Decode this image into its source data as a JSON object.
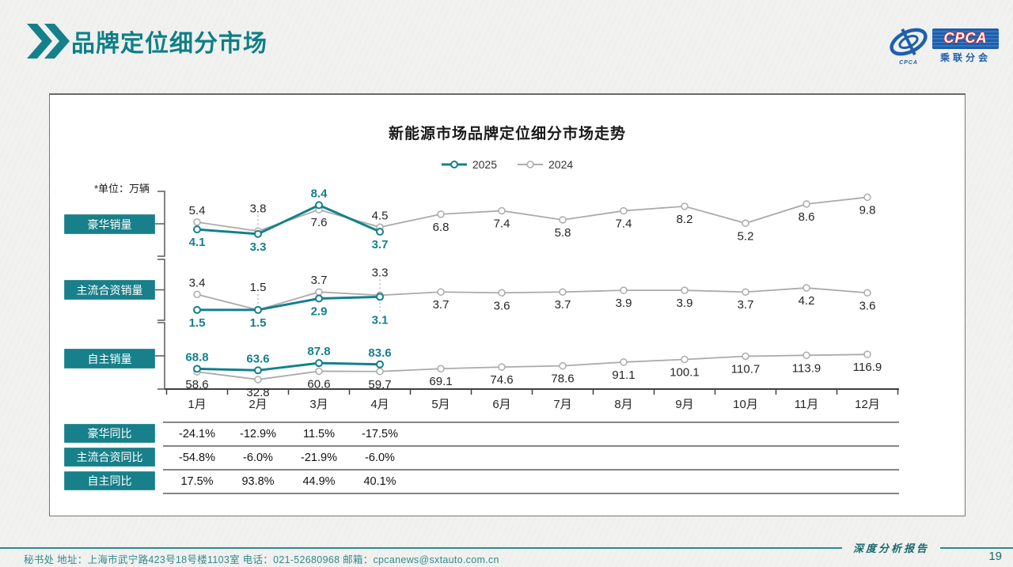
{
  "header": {
    "title": "品牌定位细分市场"
  },
  "logo": {
    "cpca_text": "CPCA",
    "org_text": "乘联分会",
    "oval_small_text": "CPCA"
  },
  "chart_data": {
    "type": "line",
    "title": "新能源市场品牌定位细分市场走势",
    "unit_note": "*单位：万辆",
    "legend_position": "top-center",
    "grid": false,
    "legend": [
      {
        "name": "2025",
        "color": "#14808c"
      },
      {
        "name": "2024",
        "color": "#ababab"
      }
    ],
    "categories": [
      "1月",
      "2月",
      "3月",
      "4月",
      "5月",
      "6月",
      "7月",
      "8月",
      "9月",
      "10月",
      "11月",
      "12月"
    ],
    "panels": [
      {
        "label": "豪华销量",
        "ylim": [
          3.0,
          10.0
        ],
        "series": [
          {
            "name": "2025",
            "values": [
              4.1,
              3.3,
              8.4,
              3.7
            ]
          },
          {
            "name": "2024",
            "values": [
              5.4,
              3.8,
              7.6,
              4.5,
              6.8,
              7.4,
              5.8,
              7.4,
              8.2,
              5.2,
              8.6,
              9.8
            ]
          }
        ]
      },
      {
        "label": "主流合资销量",
        "ylim": [
          1.2,
          4.4
        ],
        "series": [
          {
            "name": "2025",
            "values": [
              1.5,
              1.5,
              2.9,
              3.1
            ]
          },
          {
            "name": "2024",
            "values": [
              3.4,
              1.5,
              3.7,
              3.3,
              3.7,
              3.6,
              3.7,
              3.9,
              3.9,
              3.7,
              4.2,
              3.6
            ]
          }
        ]
      },
      {
        "label": "自主销量",
        "ylim": [
          30,
          120
        ],
        "series": [
          {
            "name": "2025",
            "values": [
              68.8,
              63.6,
              87.8,
              83.6
            ]
          },
          {
            "name": "2024",
            "values": [
              58.6,
              32.8,
              60.6,
              59.7,
              69.1,
              74.6,
              78.6,
              91.1,
              100.1,
              110.7,
              113.9,
              116.9
            ]
          }
        ]
      }
    ],
    "table": [
      {
        "label": "豪华同比",
        "values": [
          "-24.1%",
          "-12.9%",
          "11.5%",
          "-17.5%"
        ]
      },
      {
        "label": "主流合资同比",
        "values": [
          "-54.8%",
          "-6.0%",
          "-21.9%",
          "-6.0%"
        ]
      },
      {
        "label": "自主同比",
        "values": [
          "17.5%",
          "93.8%",
          "44.9%",
          "40.1%"
        ]
      }
    ]
  },
  "footer": {
    "report_label": "深度分析报告",
    "contact": "秘书处   地址：上海市武宁路423号18号楼1103室  电话：021-52680968   邮箱：cpcanews@sxtauto.com.cn",
    "page_number": "19"
  },
  "colors": {
    "accent_teal": "#14808c",
    "gray_line": "#ababab",
    "logo_blue": "#1e5fae",
    "logo_red": "#c3242b"
  }
}
